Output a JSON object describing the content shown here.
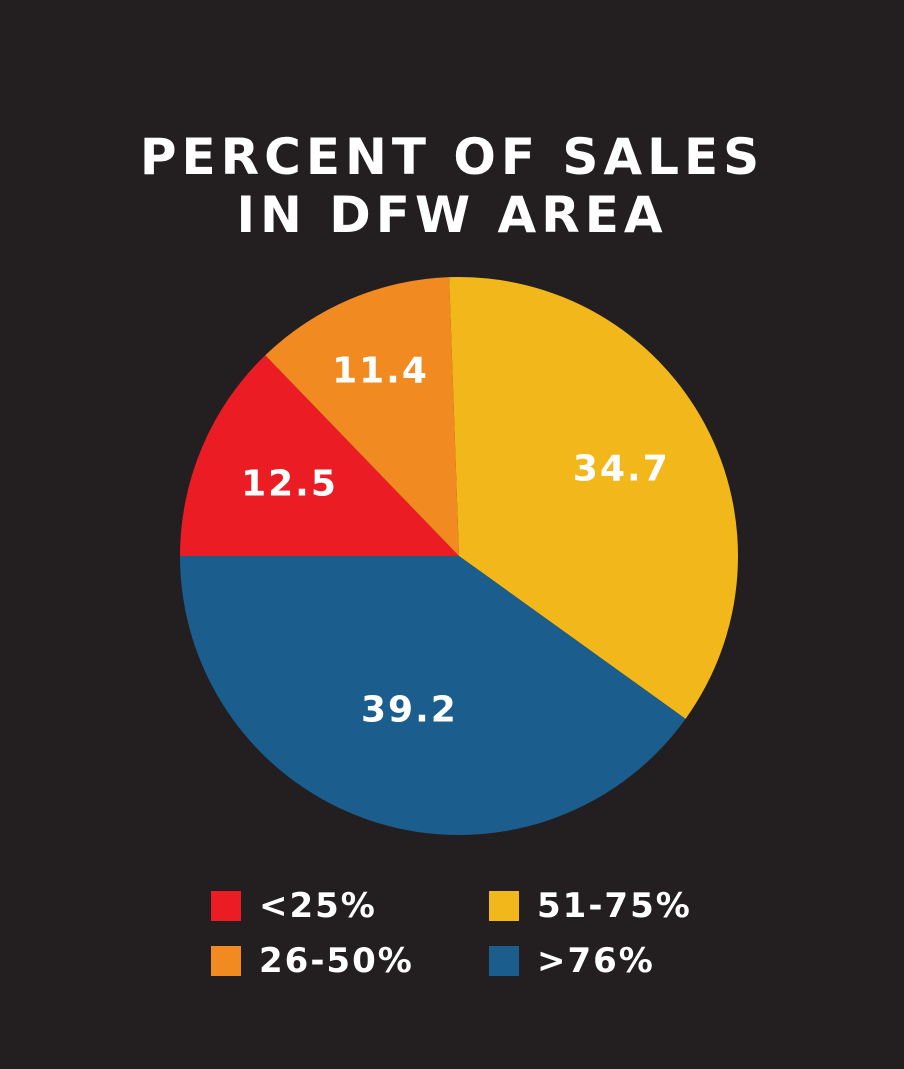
{
  "chart_data": {
    "type": "pie",
    "title": [
      "PERCENT OF SALES",
      "IN DFW AREA"
    ],
    "slices": [
      {
        "label": "<25%",
        "value": 12.5,
        "display": "12.5",
        "color": "#ec1c24"
      },
      {
        "label": "26-50%",
        "value": 11.4,
        "display": "11.4",
        "color": "#f18a21"
      },
      {
        "label": "51-75%",
        "value": 34.7,
        "display": "34.7",
        "color": "#f2b71a"
      },
      {
        "label": ">76%",
        "value": 39.2,
        "display": "39.2",
        "color": "#1b5e8e"
      }
    ],
    "legend_position": "bottom"
  },
  "background": "#231f20"
}
